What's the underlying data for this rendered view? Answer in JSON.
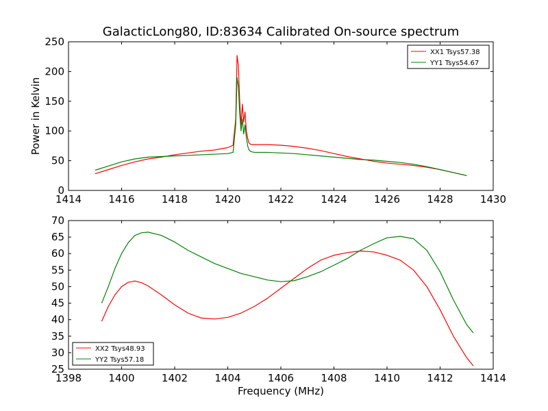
{
  "chart_data": [
    {
      "type": "line",
      "title": "GalacticLong80, ID:83634 Calibrated On-source spectrum",
      "xlabel": "",
      "ylabel": "Power in Kelvin",
      "xlim": [
        1414,
        1430
      ],
      "ylim": [
        0,
        250
      ],
      "xticks": [
        1414,
        1416,
        1418,
        1420,
        1422,
        1424,
        1426,
        1428,
        1430
      ],
      "yticks": [
        0,
        50,
        100,
        150,
        200,
        250
      ],
      "legend_position": "top-right",
      "series": [
        {
          "name": "XX1 Tsys57.38",
          "color": "#ff0000",
          "x": [
            1415.0,
            1415.5,
            1416.0,
            1416.5,
            1417.0,
            1417.5,
            1418.0,
            1418.5,
            1419.0,
            1419.5,
            1420.0,
            1420.2,
            1420.3,
            1420.35,
            1420.4,
            1420.45,
            1420.5,
            1420.55,
            1420.6,
            1420.65,
            1420.7,
            1420.75,
            1420.8,
            1420.85,
            1420.9,
            1421.0,
            1421.5,
            1422.0,
            1422.5,
            1423.0,
            1423.5,
            1424.0,
            1424.5,
            1425.0,
            1425.5,
            1426.0,
            1426.5,
            1427.0,
            1427.5,
            1428.0,
            1428.5,
            1429.0
          ],
          "y": [
            28,
            35,
            42,
            48,
            53,
            56,
            60,
            63,
            66,
            68,
            72,
            76,
            120,
            227,
            210,
            150,
            110,
            145,
            115,
            132,
            100,
            88,
            80,
            78,
            77,
            77,
            77,
            76,
            74,
            71,
            67,
            62,
            57,
            53,
            49,
            46,
            44,
            42,
            39,
            35,
            30,
            25
          ]
        },
        {
          "name": "YY1 Tsys54.67",
          "color": "#008000",
          "x": [
            1415.0,
            1415.5,
            1416.0,
            1416.5,
            1417.0,
            1417.5,
            1418.0,
            1418.5,
            1419.0,
            1419.5,
            1420.0,
            1420.2,
            1420.3,
            1420.35,
            1420.4,
            1420.45,
            1420.5,
            1420.55,
            1420.6,
            1420.65,
            1420.7,
            1420.75,
            1420.8,
            1420.85,
            1420.9,
            1421.0,
            1421.5,
            1422.0,
            1422.5,
            1423.0,
            1423.5,
            1424.0,
            1424.5,
            1425.0,
            1425.5,
            1426.0,
            1426.5,
            1427.0,
            1427.5,
            1428.0,
            1428.5,
            1429.0
          ],
          "y": [
            34,
            41,
            48,
            53,
            56,
            57,
            58,
            59,
            60,
            61,
            62,
            64,
            110,
            190,
            175,
            130,
            100,
            120,
            95,
            110,
            90,
            75,
            68,
            66,
            65,
            64,
            64,
            63,
            62,
            60,
            58,
            56,
            54,
            52,
            51,
            49,
            47,
            44,
            40,
            35,
            30,
            25
          ]
        }
      ]
    },
    {
      "type": "line",
      "title": "",
      "xlabel": "Frequency (MHz)",
      "ylabel": "",
      "xlim": [
        1398,
        1414
      ],
      "ylim": [
        25,
        70
      ],
      "xticks": [
        1398,
        1400,
        1402,
        1404,
        1406,
        1408,
        1410,
        1412,
        1414
      ],
      "yticks": [
        25,
        30,
        35,
        40,
        45,
        50,
        55,
        60,
        65,
        70
      ],
      "legend_position": "lower-left",
      "series": [
        {
          "name": "XX2 Tsys48.93",
          "color": "#ff0000",
          "x": [
            1399.25,
            1399.5,
            1399.75,
            1400.0,
            1400.25,
            1400.5,
            1400.75,
            1401.0,
            1401.5,
            1402.0,
            1402.5,
            1403.0,
            1403.5,
            1404.0,
            1404.5,
            1405.0,
            1405.5,
            1406.0,
            1406.5,
            1407.0,
            1407.5,
            1408.0,
            1408.5,
            1409.0,
            1409.5,
            1410.0,
            1410.5,
            1411.0,
            1411.5,
            1412.0,
            1412.5,
            1413.0,
            1413.25
          ],
          "y": [
            39.5,
            44,
            47.5,
            50,
            51.3,
            51.7,
            51.2,
            50.2,
            47.5,
            44.5,
            42,
            40.5,
            40.2,
            40.7,
            42,
            44,
            46.5,
            49.5,
            52.5,
            55.5,
            58,
            59.5,
            60.3,
            60.8,
            60.5,
            59.5,
            58,
            55,
            50,
            43,
            35,
            28.5,
            26
          ]
        },
        {
          "name": "YY2 Tsys57.18",
          "color": "#008000",
          "x": [
            1399.25,
            1399.5,
            1399.75,
            1400.0,
            1400.25,
            1400.5,
            1400.75,
            1401.0,
            1401.5,
            1402.0,
            1402.5,
            1403.0,
            1403.5,
            1404.0,
            1404.5,
            1405.0,
            1405.5,
            1406.0,
            1406.5,
            1407.0,
            1407.5,
            1408.0,
            1408.5,
            1409.0,
            1409.5,
            1410.0,
            1410.5,
            1411.0,
            1411.5,
            1412.0,
            1412.5,
            1413.0,
            1413.25
          ],
          "y": [
            45,
            50,
            55.5,
            60,
            63.3,
            65.5,
            66.3,
            66.5,
            65.5,
            63.5,
            61,
            59,
            57,
            55.5,
            54,
            53,
            52,
            51.5,
            51.8,
            53,
            54.5,
            56.5,
            58.5,
            61,
            63,
            64.8,
            65.2,
            64.5,
            61,
            54.5,
            46,
            38.5,
            36
          ]
        }
      ]
    }
  ]
}
